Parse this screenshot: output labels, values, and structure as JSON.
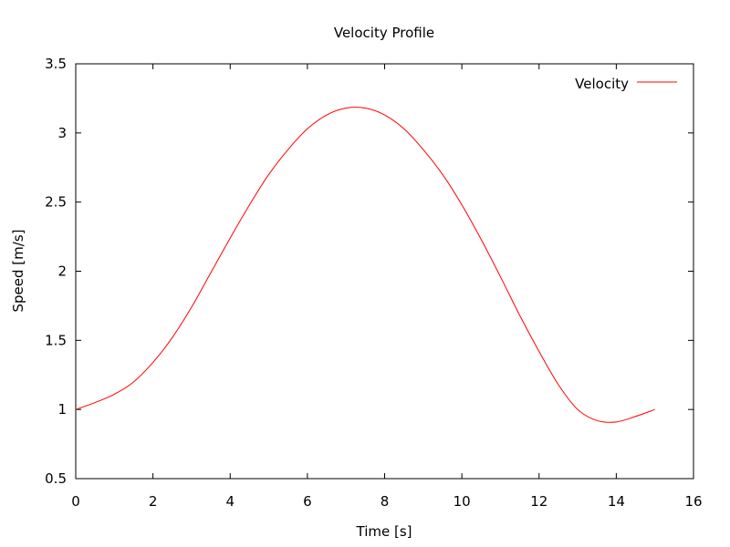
{
  "chart_data": {
    "type": "line",
    "title": "Velocity Profile",
    "xlabel": "Time [s]",
    "ylabel": "Speed [m/s]",
    "xlim": [
      0,
      16
    ],
    "ylim": [
      0.5,
      3.5
    ],
    "xticks": [
      0,
      2,
      4,
      6,
      8,
      10,
      12,
      14,
      16
    ],
    "yticks": [
      0.5,
      1,
      1.5,
      2,
      2.5,
      3,
      3.5
    ],
    "xtick_labels": [
      "0",
      "2",
      "4",
      "6",
      "8",
      "10",
      "12",
      "14",
      "16"
    ],
    "ytick_labels": [
      "0.5",
      "1",
      "1.5",
      "2",
      "2.5",
      "3",
      "3.5"
    ],
    "grid": false,
    "legend_position": "top-right",
    "series": [
      {
        "name": "Velocity",
        "color": "#ff0000",
        "x": [
          0,
          0.5,
          1,
          1.5,
          2,
          2.5,
          3,
          3.5,
          4,
          4.5,
          5,
          5.5,
          6,
          6.5,
          7,
          7.5,
          8,
          8.5,
          9,
          9.5,
          10,
          10.5,
          11,
          11.5,
          12,
          12.5,
          13,
          13.5,
          14,
          14.5,
          15
        ],
        "y": [
          1.0,
          1.05,
          1.11,
          1.2,
          1.34,
          1.52,
          1.74,
          1.99,
          2.24,
          2.48,
          2.7,
          2.88,
          3.03,
          3.13,
          3.18,
          3.18,
          3.13,
          3.03,
          2.88,
          2.7,
          2.48,
          2.23,
          1.96,
          1.68,
          1.42,
          1.18,
          1.0,
          0.92,
          0.91,
          0.95,
          1.0
        ]
      }
    ]
  }
}
